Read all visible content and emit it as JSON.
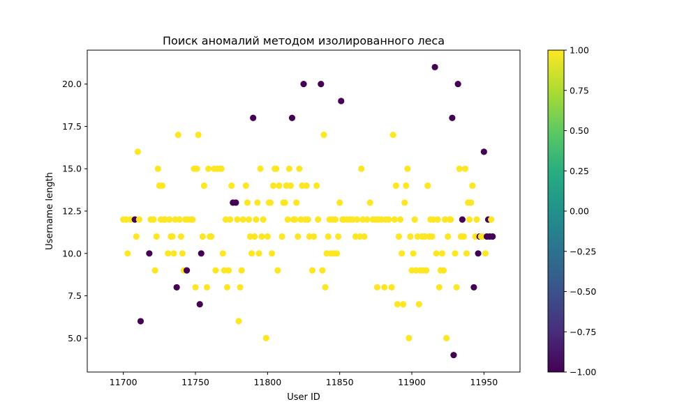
{
  "chart_data": {
    "type": "scatter",
    "title": "Поиск аномалий методом изолированного леса",
    "xlabel": "User ID",
    "ylabel": "Username length",
    "xlim": [
      11675,
      11975
    ],
    "ylim": [
      3.0,
      22.0
    ],
    "x_ticks": [
      11700,
      11750,
      11800,
      11850,
      11900,
      11950
    ],
    "y_ticks": [
      5.0,
      7.5,
      10.0,
      12.5,
      15.0,
      17.5,
      20.0
    ],
    "grid": false,
    "colorbar": {
      "colormap": "viridis",
      "range": [
        -1.0,
        1.0
      ],
      "ticks": [
        -1.0,
        -0.75,
        -0.5,
        -0.25,
        0.0,
        0.25,
        0.5,
        0.75,
        1.0
      ]
    },
    "colors": {
      "inlier": "#fde725",
      "outlier": "#440154"
    },
    "points": [
      {
        "x": 11700,
        "y": 12,
        "c": 1
      },
      {
        "x": 11702,
        "y": 12,
        "c": 1
      },
      {
        "x": 11703,
        "y": 10,
        "c": 1
      },
      {
        "x": 11705,
        "y": 12,
        "c": 1
      },
      {
        "x": 11708,
        "y": 12,
        "c": -1
      },
      {
        "x": 11709,
        "y": 11,
        "c": 1
      },
      {
        "x": 11710,
        "y": 16,
        "c": 1
      },
      {
        "x": 11711,
        "y": 12,
        "c": 1
      },
      {
        "x": 11712,
        "y": 6,
        "c": -1
      },
      {
        "x": 11718,
        "y": 10,
        "c": -1
      },
      {
        "x": 11719,
        "y": 12,
        "c": 1
      },
      {
        "x": 11721,
        "y": 12,
        "c": 1
      },
      {
        "x": 11722,
        "y": 9,
        "c": 1
      },
      {
        "x": 11723,
        "y": 11,
        "c": 1
      },
      {
        "x": 11724,
        "y": 15,
        "c": 1
      },
      {
        "x": 11725,
        "y": 14,
        "c": 1
      },
      {
        "x": 11726,
        "y": 12,
        "c": 1
      },
      {
        "x": 11727,
        "y": 14,
        "c": 1
      },
      {
        "x": 11728,
        "y": 12,
        "c": 1
      },
      {
        "x": 11729,
        "y": 12,
        "c": 1
      },
      {
        "x": 11731,
        "y": 10,
        "c": 1
      },
      {
        "x": 11732,
        "y": 12,
        "c": 1
      },
      {
        "x": 11733,
        "y": 11,
        "c": 1
      },
      {
        "x": 11734,
        "y": 11,
        "c": 1
      },
      {
        "x": 11735,
        "y": 10,
        "c": 1
      },
      {
        "x": 11736,
        "y": 12,
        "c": 1
      },
      {
        "x": 11737,
        "y": 8,
        "c": -1
      },
      {
        "x": 11738,
        "y": 17,
        "c": 1
      },
      {
        "x": 11739,
        "y": 12,
        "c": 1
      },
      {
        "x": 11740,
        "y": 11,
        "c": 1
      },
      {
        "x": 11741,
        "y": 10,
        "c": 1
      },
      {
        "x": 11742,
        "y": 9,
        "c": 1
      },
      {
        "x": 11743,
        "y": 12,
        "c": 1
      },
      {
        "x": 11744,
        "y": 9,
        "c": -1
      },
      {
        "x": 11745,
        "y": 12,
        "c": 1
      },
      {
        "x": 11747,
        "y": 12,
        "c": 1
      },
      {
        "x": 11748,
        "y": 12,
        "c": 1
      },
      {
        "x": 11749,
        "y": 15,
        "c": 1
      },
      {
        "x": 11750,
        "y": 8,
        "c": 1
      },
      {
        "x": 11751,
        "y": 15,
        "c": 1
      },
      {
        "x": 11752,
        "y": 17,
        "c": 1
      },
      {
        "x": 11753,
        "y": 7,
        "c": -1
      },
      {
        "x": 11754,
        "y": 10,
        "c": -1
      },
      {
        "x": 11755,
        "y": 11,
        "c": 1
      },
      {
        "x": 11756,
        "y": 14,
        "c": 1
      },
      {
        "x": 11758,
        "y": 8,
        "c": 1
      },
      {
        "x": 11759,
        "y": 15,
        "c": 1
      },
      {
        "x": 11760,
        "y": 11,
        "c": 1
      },
      {
        "x": 11761,
        "y": 11,
        "c": 1
      },
      {
        "x": 11763,
        "y": 15,
        "c": 1
      },
      {
        "x": 11764,
        "y": 9,
        "c": 1
      },
      {
        "x": 11765,
        "y": 15,
        "c": 1
      },
      {
        "x": 11767,
        "y": 15,
        "c": 1
      },
      {
        "x": 11768,
        "y": 15,
        "c": 1
      },
      {
        "x": 11769,
        "y": 10,
        "c": 1
      },
      {
        "x": 11770,
        "y": 9,
        "c": 1
      },
      {
        "x": 11771,
        "y": 12,
        "c": 1
      },
      {
        "x": 11772,
        "y": 8,
        "c": 1
      },
      {
        "x": 11773,
        "y": 9,
        "c": 1
      },
      {
        "x": 11774,
        "y": 12,
        "c": 1
      },
      {
        "x": 11775,
        "y": 14,
        "c": 1
      },
      {
        "x": 11776,
        "y": 13,
        "c": -1
      },
      {
        "x": 11778,
        "y": 13,
        "c": -1
      },
      {
        "x": 11779,
        "y": 12,
        "c": 1
      },
      {
        "x": 11780,
        "y": 6,
        "c": 1
      },
      {
        "x": 11781,
        "y": 8,
        "c": 1
      },
      {
        "x": 11782,
        "y": 9,
        "c": 1
      },
      {
        "x": 11783,
        "y": 12,
        "c": 1
      },
      {
        "x": 11785,
        "y": 14,
        "c": 1
      },
      {
        "x": 11786,
        "y": 13,
        "c": 1
      },
      {
        "x": 11787,
        "y": 12,
        "c": 1
      },
      {
        "x": 11788,
        "y": 11,
        "c": 1
      },
      {
        "x": 11789,
        "y": 10,
        "c": 1
      },
      {
        "x": 11790,
        "y": 18,
        "c": -1
      },
      {
        "x": 11791,
        "y": 11,
        "c": 1
      },
      {
        "x": 11792,
        "y": 12,
        "c": 1
      },
      {
        "x": 11793,
        "y": 13,
        "c": 1
      },
      {
        "x": 11794,
        "y": 10,
        "c": 1
      },
      {
        "x": 11795,
        "y": 15,
        "c": 1
      },
      {
        "x": 11796,
        "y": 11,
        "c": 1
      },
      {
        "x": 11797,
        "y": 12,
        "c": 1
      },
      {
        "x": 11799,
        "y": 5,
        "c": 1
      },
      {
        "x": 11800,
        "y": 11,
        "c": 1
      },
      {
        "x": 11801,
        "y": 13,
        "c": 1
      },
      {
        "x": 11802,
        "y": 13,
        "c": 1
      },
      {
        "x": 11803,
        "y": 10,
        "c": 1
      },
      {
        "x": 11804,
        "y": 14,
        "c": 1
      },
      {
        "x": 11805,
        "y": 15,
        "c": 1
      },
      {
        "x": 11806,
        "y": 15,
        "c": 1
      },
      {
        "x": 11807,
        "y": 9,
        "c": 1
      },
      {
        "x": 11808,
        "y": 14,
        "c": 1
      },
      {
        "x": 11810,
        "y": 11,
        "c": 1
      },
      {
        "x": 11811,
        "y": 13,
        "c": 1
      },
      {
        "x": 11812,
        "y": 13,
        "c": 1
      },
      {
        "x": 11813,
        "y": 14,
        "c": 1
      },
      {
        "x": 11814,
        "y": 12,
        "c": 1
      },
      {
        "x": 11815,
        "y": 15,
        "c": 1
      },
      {
        "x": 11816,
        "y": 14,
        "c": 1
      },
      {
        "x": 11817,
        "y": 18,
        "c": -1
      },
      {
        "x": 11818,
        "y": 12,
        "c": 1
      },
      {
        "x": 11819,
        "y": 12,
        "c": 1
      },
      {
        "x": 11820,
        "y": 13,
        "c": 1
      },
      {
        "x": 11821,
        "y": 11,
        "c": 1
      },
      {
        "x": 11822,
        "y": 15,
        "c": 1
      },
      {
        "x": 11823,
        "y": 12,
        "c": 1
      },
      {
        "x": 11824,
        "y": 14,
        "c": 1
      },
      {
        "x": 11825,
        "y": 20,
        "c": -1
      },
      {
        "x": 11826,
        "y": 12,
        "c": 1
      },
      {
        "x": 11827,
        "y": 14,
        "c": 1
      },
      {
        "x": 11828,
        "y": 12,
        "c": 1
      },
      {
        "x": 11829,
        "y": 11,
        "c": 1
      },
      {
        "x": 11831,
        "y": 9,
        "c": 1
      },
      {
        "x": 11832,
        "y": 11,
        "c": 1
      },
      {
        "x": 11834,
        "y": 14,
        "c": 1
      },
      {
        "x": 11835,
        "y": 12,
        "c": 1
      },
      {
        "x": 11837,
        "y": 20,
        "c": -1
      },
      {
        "x": 11838,
        "y": 9,
        "c": 1
      },
      {
        "x": 11839,
        "y": 17,
        "c": 1
      },
      {
        "x": 11840,
        "y": 8,
        "c": 1
      },
      {
        "x": 11841,
        "y": 10,
        "c": 1
      },
      {
        "x": 11842,
        "y": 11,
        "c": 1
      },
      {
        "x": 11843,
        "y": 12,
        "c": 1
      },
      {
        "x": 11844,
        "y": 10,
        "c": 1
      },
      {
        "x": 11845,
        "y": 12,
        "c": 1
      },
      {
        "x": 11846,
        "y": 10,
        "c": 1
      },
      {
        "x": 11847,
        "y": 12,
        "c": 1
      },
      {
        "x": 11848,
        "y": 10,
        "c": 1
      },
      {
        "x": 11849,
        "y": 11,
        "c": 1
      },
      {
        "x": 11850,
        "y": 13,
        "c": 1
      },
      {
        "x": 11851,
        "y": 19,
        "c": -1
      },
      {
        "x": 11852,
        "y": 12,
        "c": 1
      },
      {
        "x": 11853,
        "y": 12,
        "c": 1
      },
      {
        "x": 11855,
        "y": 12,
        "c": 1
      },
      {
        "x": 11857,
        "y": 12,
        "c": 1
      },
      {
        "x": 11859,
        "y": 12,
        "c": 1
      },
      {
        "x": 11861,
        "y": 11,
        "c": 1
      },
      {
        "x": 11862,
        "y": 12,
        "c": 1
      },
      {
        "x": 11864,
        "y": 11,
        "c": 1
      },
      {
        "x": 11865,
        "y": 15,
        "c": 1
      },
      {
        "x": 11866,
        "y": 12,
        "c": 1
      },
      {
        "x": 11867,
        "y": 11,
        "c": 1
      },
      {
        "x": 11869,
        "y": 12,
        "c": 1
      },
      {
        "x": 11871,
        "y": 13,
        "c": 1
      },
      {
        "x": 11873,
        "y": 12,
        "c": 1
      },
      {
        "x": 11875,
        "y": 12,
        "c": 1
      },
      {
        "x": 11876,
        "y": 8,
        "c": 1
      },
      {
        "x": 11877,
        "y": 12,
        "c": 1
      },
      {
        "x": 11879,
        "y": 12,
        "c": 1
      },
      {
        "x": 11881,
        "y": 8,
        "c": 1
      },
      {
        "x": 11882,
        "y": 12,
        "c": 1
      },
      {
        "x": 11884,
        "y": 12,
        "c": 1
      },
      {
        "x": 11886,
        "y": 8,
        "c": 1
      },
      {
        "x": 11887,
        "y": 17,
        "c": 1
      },
      {
        "x": 11888,
        "y": 12,
        "c": 1
      },
      {
        "x": 11889,
        "y": 14,
        "c": 1
      },
      {
        "x": 11890,
        "y": 7,
        "c": 1
      },
      {
        "x": 11891,
        "y": 11,
        "c": 1
      },
      {
        "x": 11892,
        "y": 12,
        "c": 1
      },
      {
        "x": 11893,
        "y": 10,
        "c": 1
      },
      {
        "x": 11894,
        "y": 7,
        "c": 1
      },
      {
        "x": 11895,
        "y": 13,
        "c": 1
      },
      {
        "x": 11896,
        "y": 14,
        "c": 1
      },
      {
        "x": 11897,
        "y": 15,
        "c": 1
      },
      {
        "x": 11898,
        "y": 5,
        "c": 1
      },
      {
        "x": 11899,
        "y": 11,
        "c": 1
      },
      {
        "x": 11900,
        "y": 9,
        "c": 1
      },
      {
        "x": 11901,
        "y": 10,
        "c": 1
      },
      {
        "x": 11902,
        "y": 12,
        "c": 1
      },
      {
        "x": 11903,
        "y": 9,
        "c": 1
      },
      {
        "x": 11904,
        "y": 11,
        "c": 1
      },
      {
        "x": 11905,
        "y": 7,
        "c": 1
      },
      {
        "x": 11906,
        "y": 9,
        "c": 1
      },
      {
        "x": 11907,
        "y": 11,
        "c": 1
      },
      {
        "x": 11908,
        "y": 9,
        "c": 1
      },
      {
        "x": 11909,
        "y": 11,
        "c": 1
      },
      {
        "x": 11910,
        "y": 9,
        "c": 1
      },
      {
        "x": 11911,
        "y": 14,
        "c": 1
      },
      {
        "x": 11912,
        "y": 11,
        "c": 1
      },
      {
        "x": 11913,
        "y": 12,
        "c": 1
      },
      {
        "x": 11914,
        "y": 11,
        "c": 1
      },
      {
        "x": 11915,
        "y": 12,
        "c": 1
      },
      {
        "x": 11916,
        "y": 21,
        "c": -1
      },
      {
        "x": 11917,
        "y": 10,
        "c": 1
      },
      {
        "x": 11918,
        "y": 12,
        "c": 1
      },
      {
        "x": 11919,
        "y": 8,
        "c": 1
      },
      {
        "x": 11920,
        "y": 9,
        "c": 1
      },
      {
        "x": 11921,
        "y": 10,
        "c": 1
      },
      {
        "x": 11922,
        "y": 9,
        "c": 1
      },
      {
        "x": 11923,
        "y": 12,
        "c": 1
      },
      {
        "x": 11924,
        "y": 5,
        "c": 1
      },
      {
        "x": 11925,
        "y": 11,
        "c": 1
      },
      {
        "x": 11926,
        "y": 12,
        "c": 1
      },
      {
        "x": 11927,
        "y": 12,
        "c": 1
      },
      {
        "x": 11928,
        "y": 18,
        "c": -1
      },
      {
        "x": 11929,
        "y": 4,
        "c": -1
      },
      {
        "x": 11930,
        "y": 10,
        "c": 1
      },
      {
        "x": 11931,
        "y": 8,
        "c": 1
      },
      {
        "x": 11932,
        "y": 20,
        "c": -1
      },
      {
        "x": 11933,
        "y": 15,
        "c": 1
      },
      {
        "x": 11934,
        "y": 11,
        "c": 1
      },
      {
        "x": 11935,
        "y": 12,
        "c": -1
      },
      {
        "x": 11936,
        "y": 11,
        "c": 1
      },
      {
        "x": 11937,
        "y": 15,
        "c": 1
      },
      {
        "x": 11938,
        "y": 10,
        "c": 1
      },
      {
        "x": 11939,
        "y": 13,
        "c": 1
      },
      {
        "x": 11940,
        "y": 12,
        "c": 1
      },
      {
        "x": 11941,
        "y": 13,
        "c": 1
      },
      {
        "x": 11942,
        "y": 14,
        "c": 1
      },
      {
        "x": 11943,
        "y": 8,
        "c": -1
      },
      {
        "x": 11944,
        "y": 11,
        "c": 1
      },
      {
        "x": 11945,
        "y": 12,
        "c": 1
      },
      {
        "x": 11946,
        "y": 10,
        "c": -1
      },
      {
        "x": 11947,
        "y": 11,
        "c": -1
      },
      {
        "x": 11948,
        "y": 11,
        "c": 1
      },
      {
        "x": 11949,
        "y": 11,
        "c": 1
      },
      {
        "x": 11950,
        "y": 16,
        "c": -1
      },
      {
        "x": 11951,
        "y": 10,
        "c": 1
      },
      {
        "x": 11952,
        "y": 11,
        "c": -1
      },
      {
        "x": 11953,
        "y": 12,
        "c": -1
      },
      {
        "x": 11954,
        "y": 11,
        "c": -1
      },
      {
        "x": 11955,
        "y": 12,
        "c": 1
      },
      {
        "x": 11956,
        "y": 11,
        "c": -1
      }
    ]
  }
}
